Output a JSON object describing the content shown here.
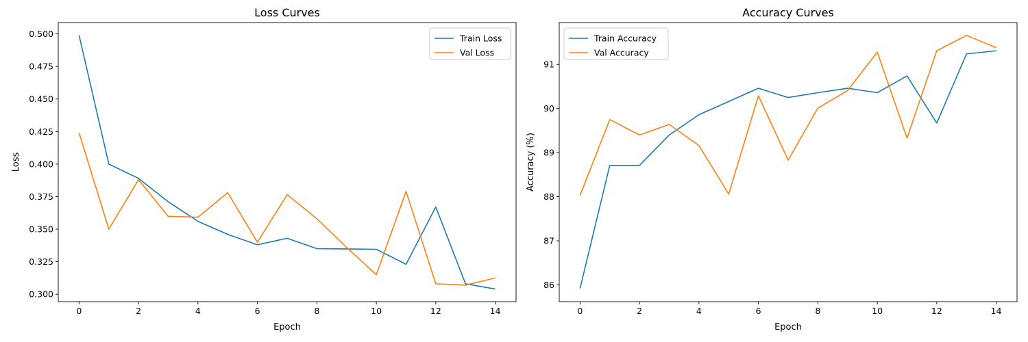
{
  "chart_data": [
    {
      "type": "line",
      "title": "Loss Curves",
      "xlabel": "Epoch",
      "ylabel": "Loss",
      "xlim": [
        -0.7,
        14.7
      ],
      "ylim": [
        0.2943,
        0.5087
      ],
      "xticks": [
        0,
        2,
        4,
        6,
        8,
        10,
        12,
        14
      ],
      "yticks": [
        0.3,
        0.325,
        0.35,
        0.375,
        0.4,
        0.425,
        0.45,
        0.475,
        0.5
      ],
      "ytick_labels": [
        "0.300",
        "0.325",
        "0.350",
        "0.375",
        "0.400",
        "0.425",
        "0.450",
        "0.475",
        "0.500"
      ],
      "legend_position": "top-right",
      "grid": false,
      "x": [
        0,
        1,
        2,
        3,
        4,
        5,
        6,
        7,
        8,
        9,
        10,
        11,
        12,
        13,
        14
      ],
      "series": [
        {
          "name": "Train Loss",
          "color": "#1f77b4",
          "values": [
            0.499,
            0.4,
            0.389,
            0.371,
            0.356,
            0.346,
            0.338,
            0.343,
            0.335,
            0.3348,
            0.3345,
            0.323,
            0.367,
            0.308,
            0.304
          ]
        },
        {
          "name": "Val Loss",
          "color": "#ff7f0e",
          "values": [
            0.424,
            0.35,
            0.388,
            0.3598,
            0.3592,
            0.378,
            0.34,
            0.3765,
            0.358,
            0.336,
            0.315,
            0.379,
            0.308,
            0.307,
            0.3125
          ]
        }
      ]
    },
    {
      "type": "line",
      "title": "Accuracy Curves",
      "xlabel": "Epoch",
      "ylabel": "Accuracy (%)",
      "xlim": [
        -0.7,
        14.7
      ],
      "ylim": [
        85.62,
        91.95
      ],
      "xticks": [
        0,
        2,
        4,
        6,
        8,
        10,
        12,
        14
      ],
      "yticks": [
        86,
        87,
        88,
        89,
        90,
        91
      ],
      "ytick_labels": [
        "86",
        "87",
        "88",
        "89",
        "90",
        "91"
      ],
      "legend_position": "top-left",
      "grid": false,
      "x": [
        0,
        1,
        2,
        3,
        4,
        5,
        6,
        7,
        8,
        9,
        10,
        11,
        12,
        13,
        14
      ],
      "series": [
        {
          "name": "Train Accuracy",
          "color": "#1f77b4",
          "values": [
            85.92,
            88.71,
            88.71,
            89.4,
            89.86,
            90.16,
            90.46,
            90.25,
            90.36,
            90.46,
            90.36,
            90.74,
            89.67,
            91.24,
            91.31
          ]
        },
        {
          "name": "Val Accuracy",
          "color": "#ff7f0e",
          "values": [
            88.03,
            89.75,
            89.4,
            89.64,
            89.16,
            88.06,
            90.29,
            88.83,
            90.01,
            90.41,
            91.28,
            89.33,
            91.31,
            91.66,
            91.38
          ]
        }
      ]
    }
  ]
}
